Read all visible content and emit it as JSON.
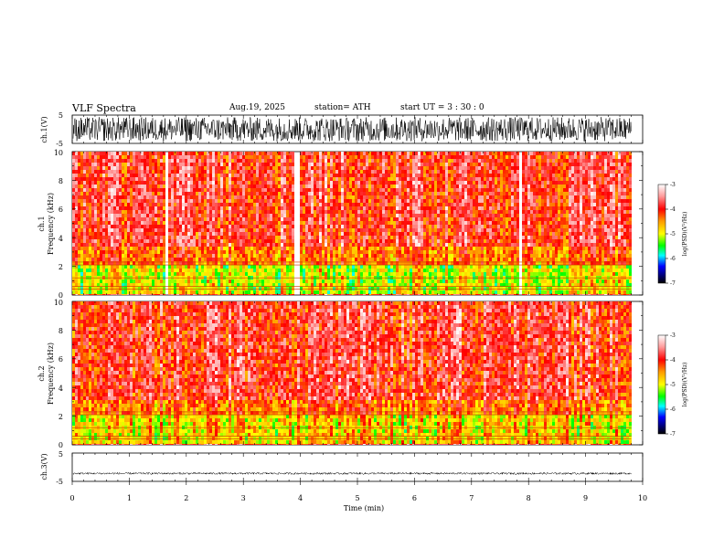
{
  "header": {
    "title": "VLF  Spectra",
    "date": "Aug.19, 2025",
    "station": "station= ATH",
    "start": "start  UT  =    3  : 30 : 0"
  },
  "chart_data": {
    "type": "heatmap",
    "title": "VLF  Spectra",
    "xlabel": "Time  (min)",
    "xlim": [
      0,
      10
    ],
    "x_ticks": [
      "0",
      "1",
      "2",
      "3",
      "4",
      "5",
      "6",
      "7",
      "8",
      "9",
      "10"
    ],
    "data_end_min": 9.8,
    "panels": [
      {
        "id": "ch1-waveform",
        "type": "line",
        "ylabel": "ch.1(V)",
        "ylim": [
          -5,
          5
        ],
        "y_ticks": [
          "5",
          "-5"
        ],
        "signal": "broadband noise, amplitude about ±4.5 V"
      },
      {
        "id": "ch1-spectrogram",
        "type": "heatmap",
        "ylabel_top": "ch.1",
        "ylabel": "Frequency  (kHz)",
        "ylim": [
          0,
          10
        ],
        "y_ticks": [
          "0",
          "2",
          "4",
          "6",
          "8",
          "10"
        ],
        "colorbar": {
          "label": "log(PSD)(V²/Hz)",
          "range": [
            -7,
            -3
          ],
          "ticks": [
            "-3",
            "-4",
            "-5",
            "-6",
            "-7"
          ]
        },
        "bands": [
          {
            "from_khz": 0,
            "to_khz": 2.2,
            "log_psd": -5.0
          },
          {
            "from_khz": 2.2,
            "to_khz": 3.5,
            "log_psd": -4.3
          },
          {
            "from_khz": 3.5,
            "to_khz": 10,
            "log_psd": -3.9
          }
        ],
        "gap_intervals_min": [
          [
            1.6,
            1.68
          ],
          [
            3.88,
            3.95
          ],
          [
            7.8,
            7.88
          ],
          [
            9.8,
            10
          ]
        ]
      },
      {
        "id": "ch2-spectrogram",
        "type": "heatmap",
        "ylabel_top": "ch.2",
        "ylabel": "Frequency  (kHz)",
        "ylim": [
          0,
          10
        ],
        "y_ticks": [
          "0",
          "2",
          "4",
          "6",
          "8",
          "10"
        ],
        "colorbar": {
          "label": "log(PSD)(V²/Hz)",
          "range": [
            -7,
            -3
          ],
          "ticks": [
            "-3",
            "-4",
            "-5",
            "-6",
            "-7"
          ]
        },
        "bands": [
          {
            "from_khz": 0,
            "to_khz": 2.0,
            "log_psd": -4.8
          },
          {
            "from_khz": 2.0,
            "to_khz": 3.0,
            "log_psd": -4.3
          },
          {
            "from_khz": 3.0,
            "to_khz": 10,
            "log_psd": -3.9
          }
        ],
        "gap_intervals_min": [
          [
            9.8,
            10
          ]
        ]
      },
      {
        "id": "ch3-waveform",
        "type": "line",
        "ylabel": "ch.3(V)",
        "ylim": [
          -5,
          5
        ],
        "y_ticks": [
          "5",
          "-5"
        ],
        "signal": "flat, about -2.2 V"
      }
    ]
  }
}
